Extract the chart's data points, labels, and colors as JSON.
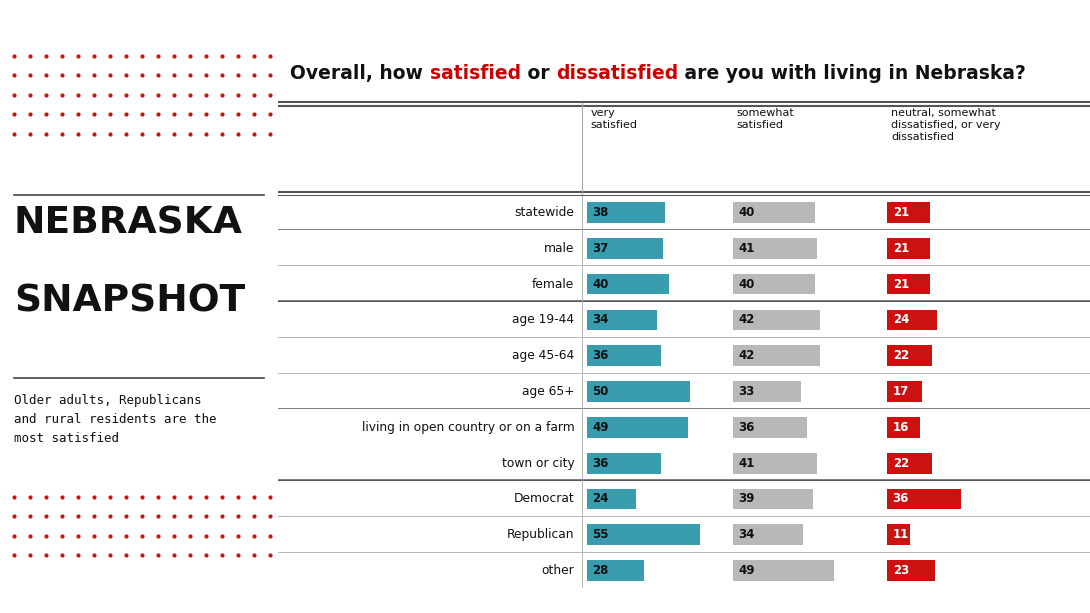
{
  "title_texts": [
    {
      "text": "Overall, how ",
      "color": "#111111"
    },
    {
      "text": "satisfied",
      "color": "#cc0000"
    },
    {
      "text": " or ",
      "color": "#111111"
    },
    {
      "text": "dissatisfied",
      "color": "#cc0000"
    },
    {
      "text": " are you with living in Nebraska?",
      "color": "#111111"
    }
  ],
  "col_headers": [
    "very\nsatisfied",
    "somewhat\nsatisfied",
    "neutral, somewhat\ndissatisfied, or very\ndissatisfied"
  ],
  "rows": [
    {
      "label": "statewide",
      "vs": 38,
      "ss": 40,
      "nd": 21,
      "thick_below": true
    },
    {
      "label": "male",
      "vs": 37,
      "ss": 41,
      "nd": 21,
      "thick_below": false
    },
    {
      "label": "female",
      "vs": 40,
      "ss": 40,
      "nd": 21,
      "thick_below": true
    },
    {
      "label": "age 19-44",
      "vs": 34,
      "ss": 42,
      "nd": 24,
      "thick_below": false
    },
    {
      "label": "age 45-64",
      "vs": 36,
      "ss": 42,
      "nd": 22,
      "thick_below": false
    },
    {
      "label": "age 65+",
      "vs": 50,
      "ss": 33,
      "nd": 17,
      "thick_below": true
    },
    {
      "label": "living in open country or on a farm",
      "vs": 49,
      "ss": 36,
      "nd": 16,
      "thick_below": false
    },
    {
      "label": "town or city",
      "vs": 36,
      "ss": 41,
      "nd": 22,
      "thick_below": true
    },
    {
      "label": "Democrat",
      "vs": 24,
      "ss": 39,
      "nd": 36,
      "thick_below": false
    },
    {
      "label": "Republican",
      "vs": 55,
      "ss": 34,
      "nd": 11,
      "thick_below": false
    },
    {
      "label": "other",
      "vs": 28,
      "ss": 49,
      "nd": 23,
      "thick_below": false
    }
  ],
  "colors": {
    "teal": "#3a9daf",
    "gray": "#b8b8b8",
    "red": "#cc1111",
    "header_bg": "#d4d4d4",
    "title_bg": "#d4d4d4",
    "top_bar": "#aa0000",
    "bottom_bar": "#aa0000",
    "dot_color": "#cc1111",
    "white": "#ffffff",
    "black": "#111111",
    "line_thick": "#555555",
    "line_thin": "#aaaaaa"
  },
  "left_panel": {
    "title_line1": "NEBRASKA",
    "title_line2": "SNAPSHOT",
    "subtitle": "Older adults, Republicans\nand rural residents are the\nmost satisfied"
  },
  "bar_max_val": 55,
  "figsize": [
    10.9,
    6.13
  ],
  "dpi": 100
}
